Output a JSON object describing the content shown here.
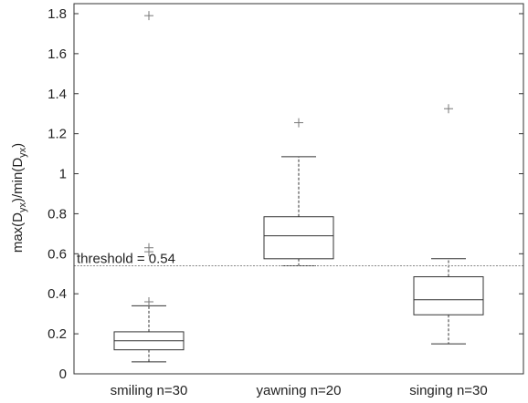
{
  "chart_data": {
    "type": "box",
    "title": "",
    "xlabel": "",
    "ylabel": "max(D_yx)/min(D_yx)",
    "ylabel_parts": {
      "p1": "max(D",
      "s1": "yx",
      "p2": ")/min(D",
      "s2": "yx",
      "p3": ")"
    },
    "ylim": [
      0,
      1.85
    ],
    "yticks": [
      0,
      0.2,
      0.4,
      0.6,
      0.8,
      1,
      1.2,
      1.4,
      1.6,
      1.8
    ],
    "ytick_labels": [
      "0",
      "0.2",
      "0.4",
      "0.6",
      "0.8",
      "1",
      "1.2",
      "1.4",
      "1.6",
      "1.8"
    ],
    "grid": false,
    "categories": [
      "smiling n=30",
      "yawning n=20",
      "singing n=30"
    ],
    "boxes": [
      {
        "category": "smiling n=30",
        "whisker_low": 0.06,
        "q1": 0.12,
        "median": 0.165,
        "q3": 0.21,
        "whisker_high": 0.34,
        "outliers": [
          0.36,
          0.61,
          0.63,
          1.79
        ]
      },
      {
        "category": "yawning n=20",
        "whisker_low": 0.54,
        "q1": 0.575,
        "median": 0.69,
        "q3": 0.785,
        "whisker_high": 1.085,
        "outliers": [
          1.255
        ]
      },
      {
        "category": "singing n=30",
        "whisker_low": 0.15,
        "q1": 0.295,
        "median": 0.37,
        "q3": 0.485,
        "whisker_high": 0.575,
        "outliers": [
          1.325
        ]
      }
    ],
    "threshold": {
      "value": 0.54,
      "label": "threshold = 0.54"
    },
    "colors": {
      "box": "#333333",
      "median": "#333333",
      "whisker": "#333333",
      "outlier": "#777777",
      "threshold": "#888888",
      "axis": "#333333"
    }
  }
}
